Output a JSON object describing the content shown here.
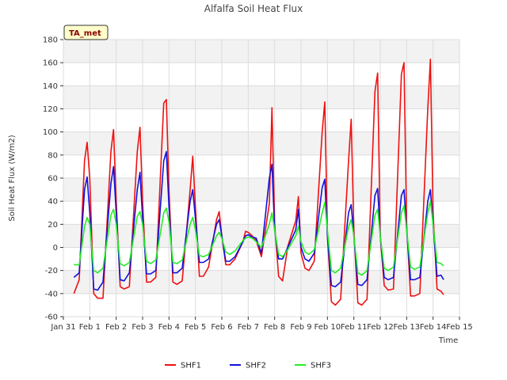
{
  "chart_data": {
    "type": "line",
    "title": "Alfalfa Soil Heat Flux",
    "xlabel": "Time",
    "ylabel": "Soil Heat Flux (W/m2)",
    "site_badge": "TA_met",
    "xlim": [
      0,
      15
    ],
    "ylim": [
      -60,
      180
    ],
    "y_ticks": [
      -60,
      -40,
      -20,
      0,
      20,
      40,
      60,
      80,
      100,
      120,
      140,
      160,
      180
    ],
    "y_tick_labels": [
      "-60",
      "-40",
      "-20",
      "0",
      "20",
      "40",
      "60",
      "80",
      "100",
      "120",
      "140",
      "160",
      "180"
    ],
    "x_ticks": [
      0,
      1,
      2,
      3,
      4,
      5,
      6,
      7,
      8,
      9,
      10,
      11,
      12,
      13,
      14,
      15
    ],
    "x_tick_labels": [
      "Jan 31",
      "Feb 1",
      "Feb 2",
      "Feb 3",
      "Feb 4",
      "Feb 5",
      "Feb 6",
      "Feb 7",
      "Feb 8",
      "Feb 9",
      "Feb 10",
      "Feb 11",
      "Feb 12",
      "Feb 13",
      "Feb 14",
      "Feb 15"
    ],
    "grid": true,
    "legend_position": "bottom-center",
    "colors": {
      "SHF1": "#ee1111",
      "SHF2": "#1111dd",
      "SHF3": "#22ee22"
    },
    "series": [
      {
        "name": "SHF1",
        "x": [
          0.4,
          0.6,
          0.8,
          0.9,
          1.0,
          1.15,
          1.3,
          1.5,
          1.8,
          1.9,
          2.0,
          2.15,
          2.3,
          2.5,
          2.8,
          2.9,
          3.0,
          3.15,
          3.3,
          3.5,
          3.8,
          3.9,
          4.0,
          4.15,
          4.3,
          4.5,
          4.8,
          4.9,
          5.0,
          5.15,
          5.3,
          5.5,
          5.8,
          5.9,
          6.0,
          6.15,
          6.3,
          6.5,
          6.8,
          6.9,
          7.0,
          7.15,
          7.3,
          7.5,
          7.8,
          7.9,
          8.0,
          8.15,
          8.3,
          8.5,
          8.8,
          8.9,
          9.0,
          9.15,
          9.3,
          9.5,
          9.8,
          9.9,
          10.0,
          10.15,
          10.3,
          10.5,
          10.8,
          10.9,
          11.0,
          11.15,
          11.3,
          11.5,
          11.8,
          11.9,
          12.0,
          12.15,
          12.3,
          12.5,
          12.8,
          12.9,
          13.0,
          13.15,
          13.3,
          13.5,
          13.8,
          13.9,
          14.0,
          14.15,
          14.3,
          14.4
        ],
        "values": [
          -40,
          -28,
          75,
          91,
          60,
          -40,
          -44,
          -44,
          83,
          102,
          40,
          -34,
          -36,
          -34,
          83,
          104,
          40,
          -30,
          -30,
          -26,
          125,
          128,
          50,
          -30,
          -32,
          -29,
          50,
          79,
          35,
          -25,
          -25,
          -17,
          24,
          31,
          10,
          -15,
          -15,
          -10,
          5,
          14,
          13,
          10,
          6,
          -8,
          38,
          121,
          20,
          -25,
          -29,
          1,
          23,
          44,
          -5,
          -18,
          -20,
          -12,
          100,
          126,
          10,
          -47,
          -50,
          -45,
          75,
          111,
          15,
          -48,
          -50,
          -45,
          135,
          151,
          10,
          -33,
          -37,
          -36,
          150,
          160,
          20,
          -42,
          -42,
          -40,
          120,
          163,
          30,
          -36,
          -38,
          -41
        ]
      },
      {
        "name": "SHF2",
        "x": [
          0.4,
          0.6,
          0.8,
          0.9,
          1.0,
          1.15,
          1.3,
          1.5,
          1.8,
          1.9,
          2.0,
          2.15,
          2.3,
          2.5,
          2.8,
          2.9,
          3.0,
          3.15,
          3.3,
          3.5,
          3.8,
          3.9,
          4.0,
          4.15,
          4.3,
          4.5,
          4.8,
          4.9,
          5.0,
          5.15,
          5.3,
          5.5,
          5.8,
          5.9,
          6.0,
          6.15,
          6.3,
          6.5,
          6.8,
          6.9,
          7.0,
          7.15,
          7.3,
          7.5,
          7.8,
          7.9,
          8.0,
          8.15,
          8.3,
          8.5,
          8.8,
          8.9,
          9.0,
          9.15,
          9.3,
          9.5,
          9.8,
          9.9,
          10.0,
          10.15,
          10.3,
          10.5,
          10.8,
          10.9,
          11.0,
          11.15,
          11.3,
          11.5,
          11.8,
          11.9,
          12.0,
          12.15,
          12.3,
          12.5,
          12.8,
          12.9,
          13.0,
          13.15,
          13.3,
          13.5,
          13.8,
          13.9,
          14.0,
          14.15,
          14.3,
          14.4
        ],
        "values": [
          -26,
          -22,
          50,
          61,
          30,
          -36,
          -37,
          -30,
          55,
          70,
          30,
          -28,
          -29,
          -22,
          50,
          65,
          25,
          -23,
          -23,
          -20,
          75,
          83,
          35,
          -22,
          -22,
          -18,
          40,
          50,
          25,
          -13,
          -13,
          -10,
          20,
          24,
          10,
          -12,
          -12,
          -8,
          5,
          10,
          11,
          9,
          8,
          -5,
          60,
          72,
          15,
          -10,
          -10,
          0,
          15,
          33,
          0,
          -10,
          -12,
          -5,
          52,
          59,
          10,
          -33,
          -34,
          -30,
          30,
          37,
          10,
          -32,
          -33,
          -28,
          45,
          51,
          10,
          -26,
          -28,
          -26,
          45,
          50,
          15,
          -28,
          -28,
          -26,
          40,
          50,
          20,
          -25,
          -24,
          -28
        ]
      },
      {
        "name": "SHF3",
        "x": [
          0.4,
          0.6,
          0.8,
          0.9,
          1.0,
          1.15,
          1.3,
          1.5,
          1.8,
          1.9,
          2.0,
          2.15,
          2.3,
          2.5,
          2.8,
          2.9,
          3.0,
          3.15,
          3.3,
          3.5,
          3.8,
          3.9,
          4.0,
          4.15,
          4.3,
          4.5,
          4.8,
          4.9,
          5.0,
          5.15,
          5.3,
          5.5,
          5.8,
          5.9,
          6.0,
          6.15,
          6.3,
          6.5,
          6.8,
          6.9,
          7.0,
          7.15,
          7.3,
          7.5,
          7.8,
          7.9,
          8.0,
          8.15,
          8.3,
          8.5,
          8.8,
          8.9,
          9.0,
          9.15,
          9.3,
          9.5,
          9.8,
          9.9,
          10.0,
          10.15,
          10.3,
          10.5,
          10.8,
          10.9,
          11.0,
          11.15,
          11.3,
          11.5,
          11.8,
          11.9,
          12.0,
          12.15,
          12.3,
          12.5,
          12.8,
          12.9,
          13.0,
          13.15,
          13.3,
          13.5,
          13.8,
          13.9,
          14.0,
          14.15,
          14.3,
          14.4
        ],
        "values": [
          -15,
          -15,
          18,
          26,
          20,
          -20,
          -22,
          -18,
          28,
          33,
          20,
          -14,
          -16,
          -13,
          27,
          31,
          20,
          -12,
          -14,
          -11,
          30,
          34,
          22,
          -13,
          -14,
          -11,
          20,
          26,
          15,
          -7,
          -8,
          -6,
          10,
          13,
          8,
          -4,
          -6,
          -3,
          6,
          8,
          9,
          8,
          5,
          0,
          20,
          30,
          15,
          -6,
          -8,
          -2,
          10,
          18,
          5,
          -4,
          -6,
          -2,
          30,
          39,
          15,
          -20,
          -22,
          -18,
          18,
          24,
          10,
          -22,
          -24,
          -20,
          28,
          33,
          10,
          -18,
          -20,
          -17,
          30,
          36,
          15,
          -17,
          -19,
          -17,
          30,
          40,
          20,
          -13,
          -14,
          -16
        ]
      }
    ]
  }
}
